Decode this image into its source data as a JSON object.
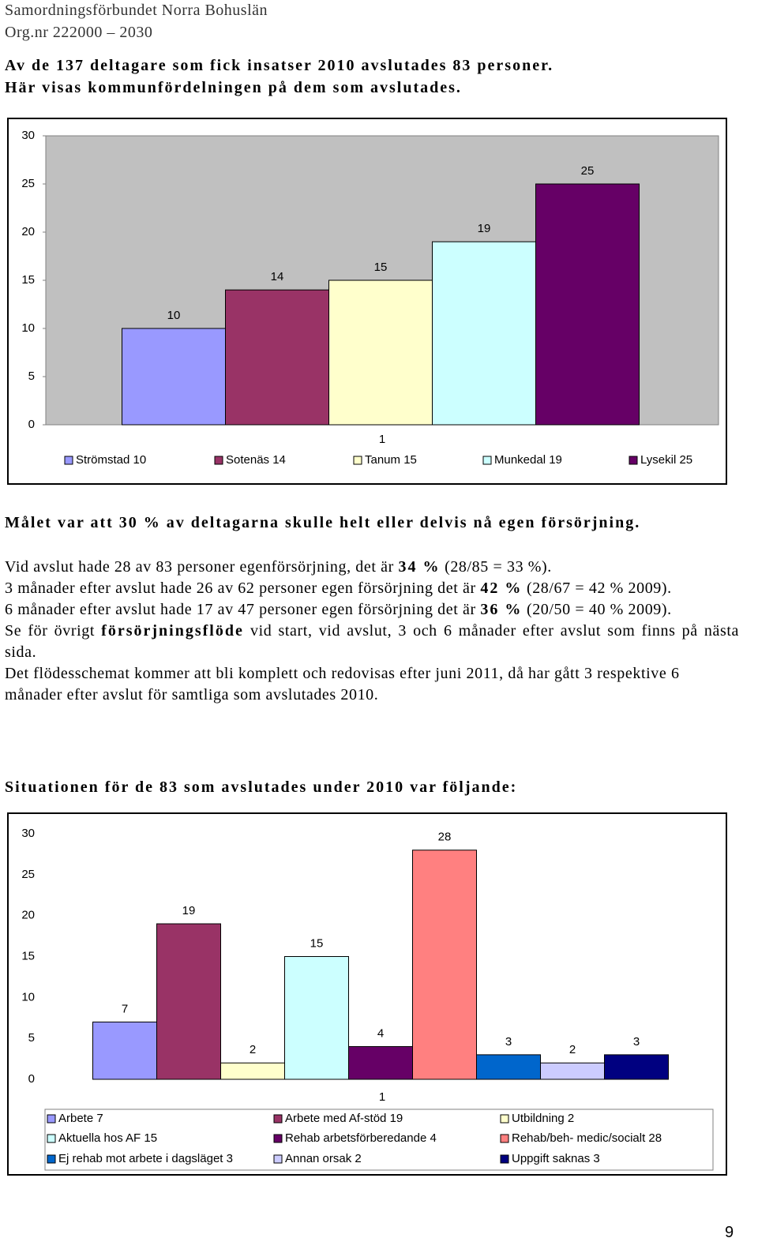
{
  "header": {
    "lines": [
      "Samordningsförbundet Norra Bohuslän",
      "Org.nr 222000 – 2030"
    ]
  },
  "intro": [
    "Av de 137 deltagare som fick insatser 2010 avslutades 83 personer.",
    "Här visas kommunfördelningen på dem som avslutades."
  ],
  "goal_heading": "Målet var att 30 % av deltagarna skulle helt eller delvis nå egen försörjning.",
  "paragraphs": [
    [
      "Vid avslut hade 28 av 83 personer egenförsörjning, det är ",
      "34 %",
      " (28/85 = 33 %)."
    ],
    [
      "3 månader efter avslut hade 26 av 62 personer egen försörjning det är ",
      "42 %",
      " (28/67 = 42 % 2009)."
    ],
    [
      "6 månader efter avslut hade 17 av 47 personer egen försörjning det är ",
      "36 %",
      " (20/50 = 40 % 2009)."
    ],
    [
      "Se för övrigt ",
      "försörjningsflöde",
      " vid start, vid avslut, 3 och 6 månader efter avslut som finns på nästa sida."
    ],
    [
      "Det flödesschemat kommer att bli komplett och redovisas efter juni 2011, då har gått 3 respektive 6 månader efter avslut för samtliga som avslutades 2010."
    ]
  ],
  "situation_heading": "Situationen för de 83 som avslutades under 2010 var följande:",
  "page_number": "9",
  "chart_data": [
    {
      "type": "bar",
      "categories": [
        "1"
      ],
      "ylim": [
        0,
        30
      ],
      "yticks": [
        0,
        5,
        10,
        15,
        20,
        25,
        30
      ],
      "background": "#c0c0c0",
      "legend": "bottom",
      "series": [
        {
          "name": "Strömstad 10",
          "color": "#9999ff",
          "values": [
            10
          ]
        },
        {
          "name": "Sotenäs 14",
          "color": "#993366",
          "values": [
            14
          ]
        },
        {
          "name": "Tanum 15",
          "color": "#ffffcc",
          "values": [
            15
          ]
        },
        {
          "name": "Munkedal 19",
          "color": "#ccffff",
          "values": [
            19
          ]
        },
        {
          "name": "Lysekil 25",
          "color": "#660066",
          "values": [
            25
          ]
        }
      ]
    },
    {
      "type": "bar",
      "categories": [
        "1"
      ],
      "ylim": [
        0,
        30
      ],
      "yticks": [
        0,
        5,
        10,
        15,
        20,
        25,
        30
      ],
      "background": "#ffffff",
      "legend": "bottom",
      "series": [
        {
          "name": "Arbete 7",
          "color": "#9999ff",
          "values": [
            7
          ]
        },
        {
          "name": "Arbete med Af-stöd 19",
          "color": "#993366",
          "values": [
            19
          ]
        },
        {
          "name": "Utbildning 2",
          "color": "#ffffcc",
          "values": [
            2
          ]
        },
        {
          "name": "Aktuella hos AF 15",
          "color": "#ccffff",
          "values": [
            15
          ]
        },
        {
          "name": "Rehab arbetsförberedande 4",
          "color": "#660066",
          "values": [
            4
          ]
        },
        {
          "name": "Rehab/beh- medic/socialt 28",
          "color": "#ff8080",
          "values": [
            28
          ]
        },
        {
          "name": "Ej rehab mot arbete i dagsläget 3",
          "color": "#0066cc",
          "values": [
            3
          ]
        },
        {
          "name": "Annan orsak 2",
          "color": "#ccccff",
          "values": [
            2
          ]
        },
        {
          "name": "Uppgift saknas 3",
          "color": "#000080",
          "values": [
            3
          ]
        }
      ]
    }
  ]
}
